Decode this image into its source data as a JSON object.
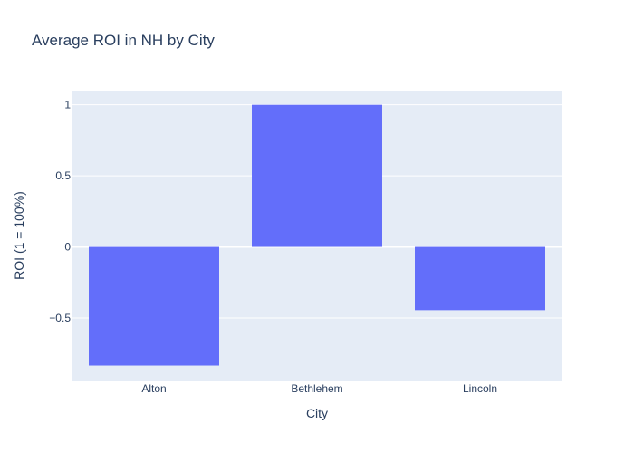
{
  "chart_data": {
    "type": "bar",
    "title": "Average ROI in NH by City",
    "xlabel": "City",
    "ylabel": "ROI (1 = 100%)",
    "categories": [
      "Alton",
      "Bethlehem",
      "Lincoln"
    ],
    "values": [
      -0.835,
      1.0,
      -0.445
    ],
    "ylim": [
      -0.94,
      1.1
    ],
    "yticks": [
      1,
      0.5,
      0,
      -0.5
    ],
    "ytick_labels": [
      "1",
      "0.5",
      "0",
      "−0.5"
    ],
    "grid": true,
    "colors": {
      "bar": "#636efa",
      "plot_background": "#e5ecf6",
      "grid": "#ffffff",
      "text": "#2a3f5f"
    }
  }
}
